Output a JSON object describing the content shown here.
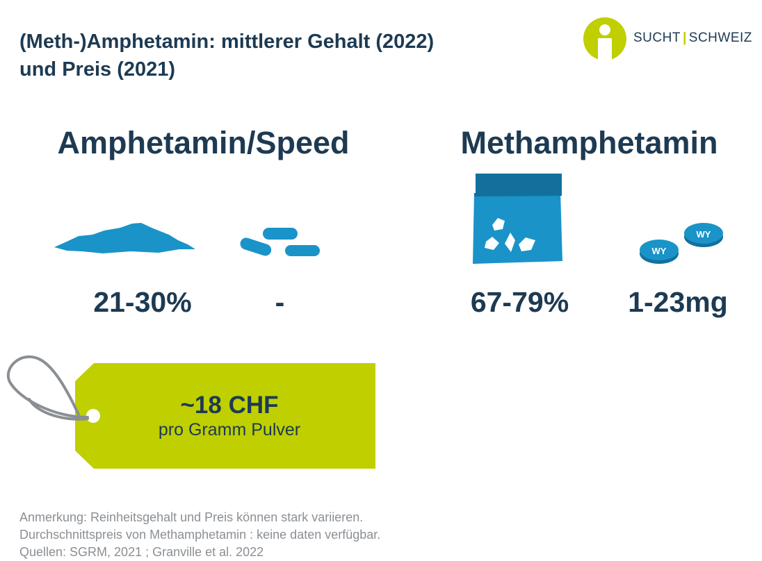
{
  "title": {
    "line1": "(Meth-)Amphetamin: mittlerer Gehalt (2022)",
    "line2": "und Preis (2021)"
  },
  "logo": {
    "left": "SUCHT",
    "separator": "|",
    "right": "SCHWEIZ",
    "icon": "person-circle-logo-icon"
  },
  "sections": {
    "amphetamin": {
      "heading": "Amphetamin/Speed",
      "powder_value": "21-30%",
      "pills_value": "-",
      "powder_icon": "powder-pile-icon",
      "pills_icon": "capsules-icon"
    },
    "methamphetamin": {
      "heading": "Methamphetamin",
      "crystal_value": "67-79%",
      "tablet_value": "1-23mg",
      "crystal_icon": "crystal-bag-icon",
      "tablet_icon": "wy-tablets-icon",
      "tablet_imprint": "WY"
    }
  },
  "price_tag": {
    "price": "~18 CHF",
    "unit": "pro Gramm Pulver",
    "icon": "price-tag-icon"
  },
  "notes": [
    "Anmerkung: Reinheitsgehalt und Preis können stark variieren.",
    "Durchschnittspreis von Methamphetamin : keine daten verfügbar.",
    "Quellen: SGRM, 2021 ; Granville et al. 2022"
  ],
  "colors": {
    "navy": "#1d3a52",
    "blue": "#1a93c8",
    "blue_dark": "#13709c",
    "lime": "#bfcf00",
    "gray_text": "#8a8f94"
  }
}
